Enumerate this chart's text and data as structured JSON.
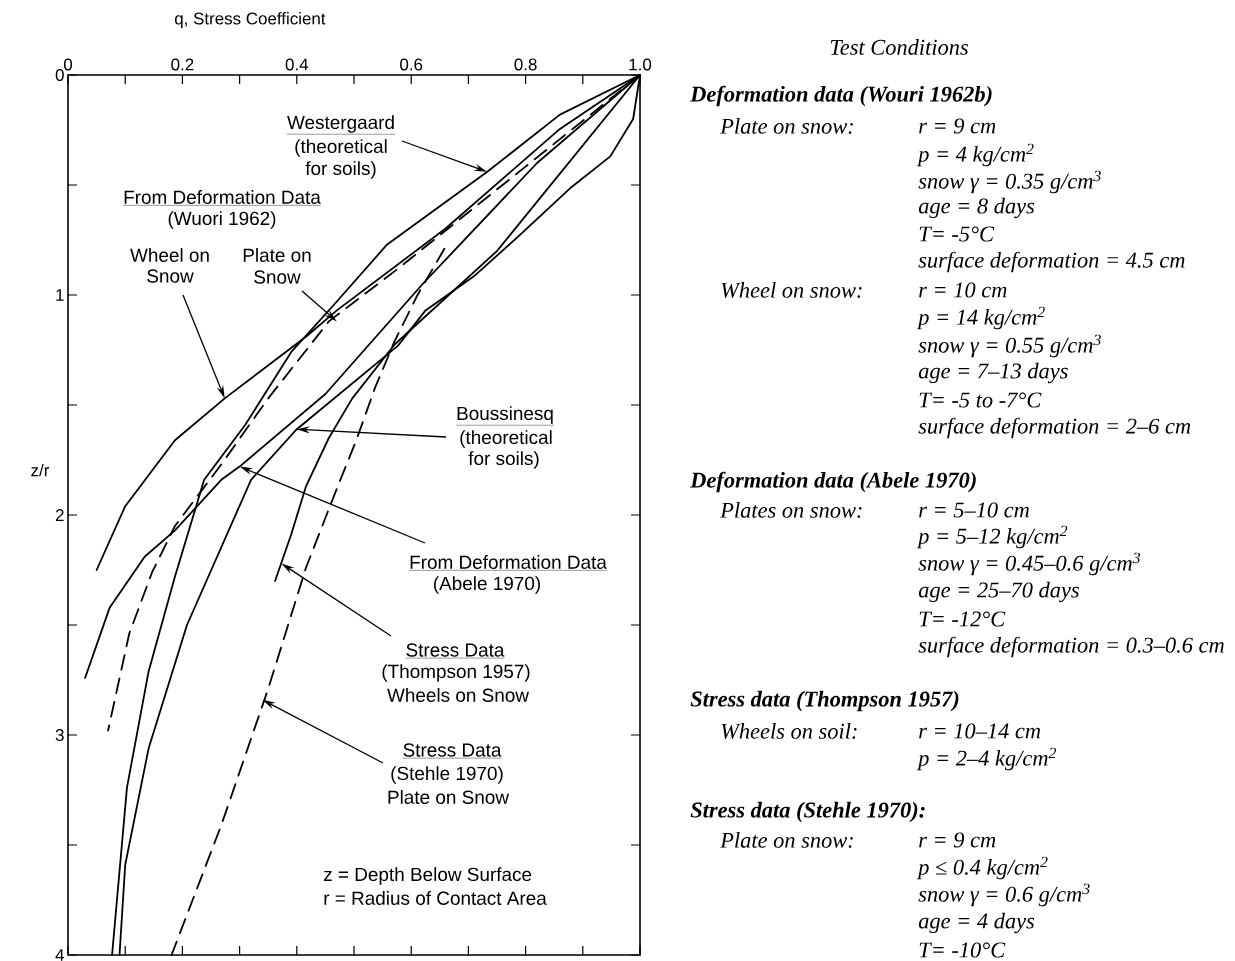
{
  "chart_data": [
    {
      "type": "line",
      "xlabel": "q, Stress Coefficient",
      "ylabel": "z/r",
      "xlim": [
        0,
        1
      ],
      "ylim": [
        4,
        0
      ],
      "xticks": [
        0,
        {
          "value": 0.1,
          "label": null
        },
        0.2,
        {
          "value": 0.3,
          "label": null
        },
        0.4,
        {
          "value": 0.5,
          "label": null
        },
        0.6,
        {
          "value": 0.7,
          "label": null
        },
        0.8,
        {
          "value": 0.9,
          "label": null
        },
        {
          "value": 1,
          "label": "1.0"
        }
      ],
      "yticks": [
        0,
        {
          "value": 0.5,
          "label": null
        },
        1,
        {
          "value": 1.5,
          "label": null
        },
        2,
        {
          "value": 2.5,
          "label": null
        },
        3,
        {
          "value": 3.5,
          "label": null
        },
        4
      ],
      "series": [
        {
          "color": "#000000",
          "line_style": "solid",
          "x": [
            1,
            0.86,
            0.733,
            0.558,
            0.463,
            0.39,
            0.31,
            0.238,
            0.187,
            0.141,
            0.103,
            0.077
          ],
          "values": [
            0,
            0.18,
            0.44,
            0.77,
            1.05,
            1.26,
            1.59,
            1.84,
            2.28,
            2.71,
            3.24,
            4
          ]
        },
        {
          "color": "#000000",
          "line_style": "solid",
          "x": [
            1,
            0.988,
            0.948,
            0.88,
            0.793,
            0.712,
            0.625,
            0.577,
            0.4,
            0.32,
            0.208,
            0.141,
            0.1,
            0.09
          ],
          "values": [
            0,
            0.2,
            0.37,
            0.51,
            0.72,
            0.91,
            1.07,
            1.23,
            1.61,
            1.84,
            2.5,
            3.06,
            3.59,
            4
          ]
        },
        {
          "color": "#000000",
          "line_style": "solid",
          "x": [
            1,
            0.86,
            0.659,
            0.47,
            0.416,
            0.274,
            0.187,
            0.1,
            0.05
          ],
          "values": [
            0,
            0.245,
            0.7,
            1.07,
            1.19,
            1.47,
            1.66,
            1.96,
            2.25
          ]
        },
        {
          "color": "#000000",
          "line_style": "dashed",
          "x": [
            1,
            0.577,
            0.456,
            0.35,
            0.268,
            0.187,
            0.147,
            0.107,
            0.07
          ],
          "values": [
            0,
            0.88,
            1.12,
            1.47,
            1.77,
            2.05,
            2.26,
            2.54,
            2.98
          ]
        },
        {
          "color": "#000000",
          "line_style": "solid",
          "x": [
            1,
            0.82,
            0.62,
            0.45,
            0.3,
            0.268,
            0.187,
            0.134,
            0.073,
            0.03
          ],
          "values": [
            0,
            0.4,
            0.95,
            1.45,
            1.78,
            1.84,
            2.07,
            2.19,
            2.42,
            2.74
          ]
        },
        {
          "color": "#000000",
          "line_style": "solid",
          "x": [
            1,
            0.75,
            0.571,
            0.497,
            0.456,
            0.416,
            0.39,
            0.362
          ],
          "values": [
            0,
            0.8,
            1.225,
            1.47,
            1.65,
            1.87,
            2.09,
            2.3
          ]
        },
        {
          "color": "#000000",
          "line_style": "dashed",
          "x": [
            0.658,
            0.611,
            0.571,
            0.537,
            0.504,
            0.47,
            0.416,
            0.35,
            0.268,
            0.181
          ],
          "values": [
            0.79,
            1.0,
            1.21,
            1.42,
            1.66,
            1.88,
            2.24,
            2.79,
            3.41,
            4.0
          ]
        }
      ],
      "annotations": [
        {
          "text": "Westergaard",
          "x": 0.733,
          "y": 0.44
        },
        "(theoretical",
        "for soils)",
        "From Deformation Data",
        "(Wuori 1962)",
        "Wheel on",
        {
          "text": "Snow",
          "x": 0.274,
          "y": 1.47
        },
        "Plate on",
        {
          "text": "Snow",
          "x": 0.47,
          "y": 1.12
        },
        {
          "text": "Boussinesq",
          "x": 0.4,
          "y": 1.61
        },
        "(theoretical",
        "for soils)",
        {
          "text": "From Deformation Data",
          "x": 0.3,
          "y": 1.78
        },
        "(Abele 1970)",
        {
          "text": "Stress Data",
          "x": 0.373,
          "y": 2.22
        },
        "(Thompson 1957)",
        "Wheels on Snow",
        "Stress Data",
        {
          "text": "(Stehle 1970)",
          "x": 0.34,
          "y": 2.84
        },
        "Plate on Snow",
        "z = Depth Below Surface",
        "r = Radius of Contact Area"
      ]
    },
    {
      "type": "other",
      "title": "Test Conditions",
      "annotations": [
        "Deformation data (Wouri 1962b)",
        "Plate on snow:",
        "r = 9 cm",
        "p = 4 kg/cm$^{2}$",
        "snow γ = 0.35 g/cm$^{3}$",
        "age = 8 days",
        "T= -5°C",
        "surface deformation = 4.5 cm",
        "Wheel on snow:",
        "r = 10 cm",
        "p = 14 kg/cm$^{2}$",
        "snow γ = 0.55 g/cm$^{3}$",
        "age = 7–13 days",
        "T= -5 to -7°C",
        "surface deformation = 2–6 cm",
        "Deformation data (Abele 1970)",
        "Plates on snow:",
        "r = 5–10 cm",
        "p = 5–12 kg/cm$^{2}$",
        "snow γ = 0.45–0.6 g/cm$^{3}$",
        "age = 25–70 days",
        "T= -12°C",
        "surface deformation = 0.3–0.6 cm",
        "Stress data (Thompson 1957)",
        "Wheels on soil:",
        "r = 10–14 cm",
        "p = 2–4 kg/cm$^{2}$",
        "Stress data (Stehle 1970):",
        "Plate on snow:",
        "r = 9 cm",
        "p ≤ 0.4 kg/cm$^{2}$",
        "snow γ = 0.6 g/cm$^{3}$",
        "age = 4 days",
        "T= -10°C"
      ]
    }
  ]
}
